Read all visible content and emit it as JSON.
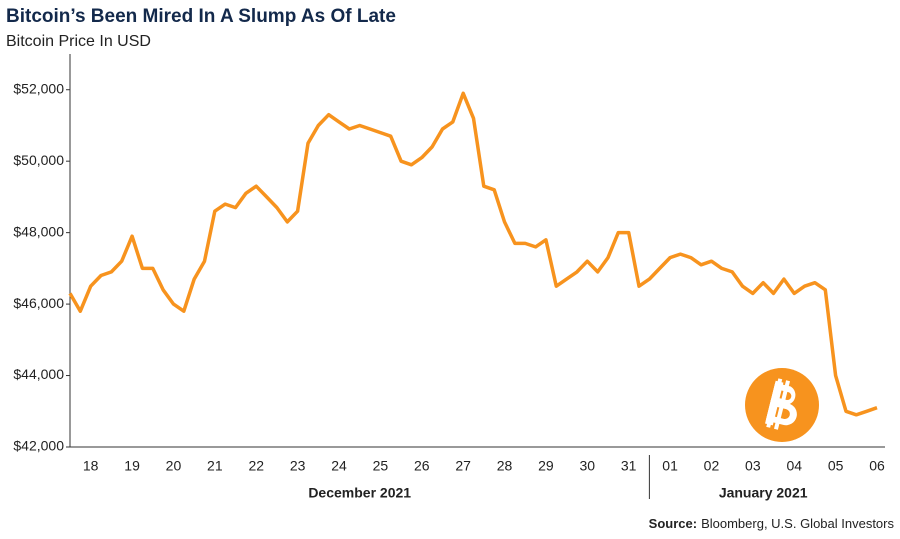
{
  "chart_data": {
    "type": "line",
    "title": "Bitcoin’s Been Mired In A Slump As Of Late",
    "subtitle": "Bitcoin Price In USD",
    "categories": [
      null,
      null,
      "18",
      null,
      null,
      null,
      "19",
      null,
      null,
      null,
      "20",
      null,
      null,
      null,
      "21",
      null,
      null,
      null,
      "22",
      null,
      null,
      null,
      "23",
      null,
      null,
      null,
      "24",
      null,
      null,
      null,
      "25",
      null,
      null,
      null,
      "26",
      null,
      null,
      null,
      "27",
      null,
      null,
      null,
      "28",
      null,
      null,
      null,
      "29",
      null,
      null,
      null,
      "30",
      null,
      null,
      null,
      "31",
      null,
      null,
      null,
      "01",
      null,
      null,
      null,
      "02",
      null,
      null,
      null,
      "03",
      null,
      null,
      null,
      "04",
      null,
      null,
      null,
      "05",
      null,
      null,
      null,
      "06"
    ],
    "x_group_labels": [
      "December 2021",
      "January 2021"
    ],
    "series": [
      {
        "name": "Bitcoin",
        "color": "#f7931e",
        "values": [
          46300,
          45800,
          46500,
          46800,
          46900,
          47200,
          47900,
          47000,
          47000,
          46400,
          46000,
          45800,
          46700,
          47200,
          48600,
          48800,
          48700,
          49100,
          49300,
          49000,
          48700,
          48300,
          48600,
          50500,
          51000,
          51300,
          51100,
          50900,
          51000,
          50900,
          50800,
          50700,
          50000,
          49900,
          50100,
          50400,
          50900,
          51100,
          51900,
          51200,
          49300,
          49200,
          48300,
          47700,
          47700,
          47600,
          47800,
          46500,
          46700,
          46900,
          47200,
          46900,
          47300,
          48000,
          48000,
          46500,
          46700,
          47000,
          47300,
          47400,
          47300,
          47100,
          47200,
          47000,
          46900,
          46500,
          46300,
          46600,
          46300,
          46700,
          46300,
          46500,
          46600,
          46400,
          44000,
          43000,
          42900,
          43000,
          43100
        ]
      }
    ],
    "ylim": [
      42000,
      53000
    ],
    "yticks": [
      {
        "value": 42000,
        "label": "$42,000"
      },
      {
        "value": 44000,
        "label": "$44,000"
      },
      {
        "value": 46000,
        "label": "$46,000"
      },
      {
        "value": 48000,
        "label": "$48,000"
      },
      {
        "value": 50000,
        "label": "$50,000"
      },
      {
        "value": 52000,
        "label": "$52,000"
      }
    ],
    "grid": false,
    "source_label": "Source:",
    "source": "Bloomberg, U.S. Global Investors"
  }
}
